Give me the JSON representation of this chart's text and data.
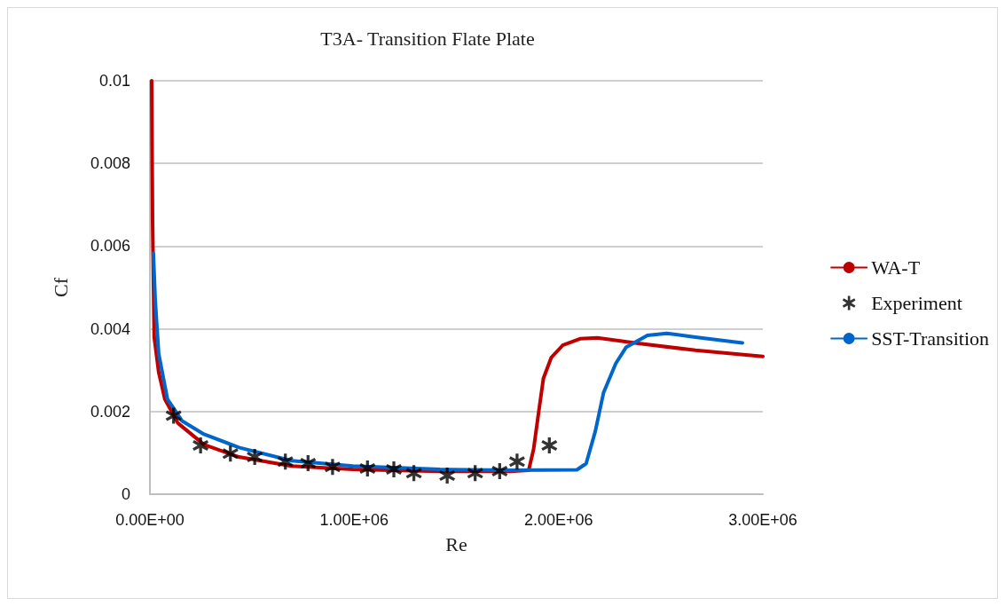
{
  "chart_data": {
    "type": "line",
    "title": "T3A- Transition Flate Plate",
    "xlabel": "Re",
    "ylabel": "Cf",
    "xlim": [
      0,
      3000000
    ],
    "xticks": [
      {
        "value": 0,
        "label": "0.00E+00"
      },
      {
        "value": 1000000,
        "label": "1.00E+06"
      },
      {
        "value": 2000000,
        "label": "2.00E+06"
      },
      {
        "value": 3000000,
        "label": "3.00E+06"
      }
    ],
    "ylim": [
      0,
      0.01
    ],
    "yticks": [
      0,
      0.002,
      0.004,
      0.006,
      0.008,
      0.01
    ],
    "grid": "y",
    "legend": "right",
    "line_style": "solid",
    "series": [
      {
        "name": "WA-T",
        "color": "#c00000",
        "marker": "none",
        "x": [
          8600,
          13000,
          21000,
          43000,
          73000,
          137000,
          265000,
          436000,
          693000,
          993000,
          1420000,
          1763000,
          1854000,
          1878000,
          1904000,
          1926000,
          1964000,
          2020000,
          2105000,
          2190000,
          2390000,
          2670000,
          3000000
        ],
        "values": [
          0.01,
          0.0066,
          0.0038,
          0.00295,
          0.0023,
          0.00172,
          0.0012,
          0.0009,
          0.00068,
          0.0006,
          0.00055,
          0.00055,
          0.00058,
          0.00109,
          0.00203,
          0.0028,
          0.0033,
          0.0036,
          0.00376,
          0.00378,
          0.00365,
          0.00348,
          0.00333
        ]
      },
      {
        "name": "Experiment",
        "type": "scatter",
        "color": "#000000",
        "marker": "star",
        "x": [
          116000,
          248000,
          394000,
          513000,
          663000,
          774000,
          894000,
          1065000,
          1194000,
          1292000,
          1455000,
          1592000,
          1712000,
          1797000,
          1955000
        ],
        "values": [
          0.0019,
          0.00118,
          0.00098,
          0.0009,
          0.00079,
          0.00075,
          0.00066,
          0.00062,
          0.0006,
          0.00051,
          0.00045,
          0.00051,
          0.00056,
          0.00079,
          0.00118
        ]
      },
      {
        "name": "SST-Transition",
        "color": "#0066cc",
        "marker": "none",
        "x": [
          17000,
          26000,
          43000,
          86000,
          158000,
          265000,
          436000,
          693000,
          993000,
          1420000,
          1763000,
          2090000,
          2135000,
          2180000,
          2220000,
          2280000,
          2330000,
          2435000,
          2530000,
          2670000,
          2900000
        ],
        "values": [
          0.00583,
          0.0047,
          0.0034,
          0.0023,
          0.00177,
          0.00145,
          0.00113,
          0.00081,
          0.00068,
          0.0006,
          0.00058,
          0.00059,
          0.00074,
          0.00152,
          0.00245,
          0.00316,
          0.00355,
          0.00384,
          0.00389,
          0.0038,
          0.00366
        ]
      }
    ]
  }
}
